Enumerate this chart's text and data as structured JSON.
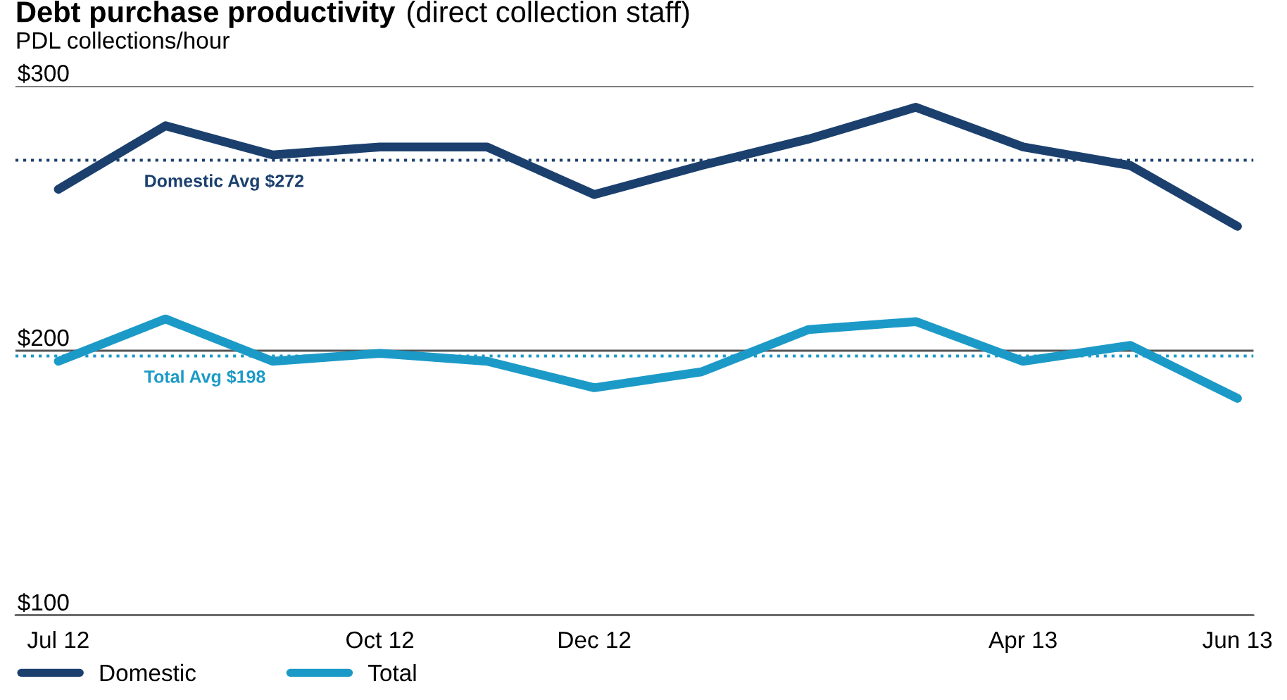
{
  "chart_data": {
    "type": "line",
    "title": "Debt purchase productivity",
    "subtitle": "(direct collection staff)",
    "ylabel": "PDL collections/hour",
    "categories": [
      "Jul 12",
      null,
      null,
      "Oct 12",
      null,
      "Dec 12",
      null,
      null,
      null,
      "Apr 13",
      null,
      "Jun 13"
    ],
    "series": [
      {
        "name": "Domestic",
        "color": "#1b406e",
        "values": [
          261,
          285,
          274,
          277,
          277,
          259,
          270,
          280,
          292,
          277,
          270,
          247
        ]
      },
      {
        "name": "Total",
        "color": "#1c9ac7",
        "values": [
          196,
          212,
          196,
          199,
          196,
          186,
          192,
          208,
          211,
          196,
          202,
          182
        ]
      }
    ],
    "ylim": [
      100,
      300
    ],
    "yticks": [
      {
        "value": 100,
        "label": "$100"
      },
      {
        "value": 200,
        "label": "$200"
      },
      {
        "value": 300,
        "label": "$300"
      }
    ],
    "ref_lines": [
      {
        "axis": "y",
        "value": 272,
        "label": "Domestic Avg $272",
        "color": "#1b406e",
        "line_style": "dotted"
      },
      {
        "axis": "y",
        "value": 198,
        "label": "Total Avg $198",
        "color": "#1c9ac7",
        "line_style": "dotted"
      }
    ],
    "grid": "y",
    "legend": "bottom left",
    "marker": "none",
    "line_style": "solid"
  }
}
